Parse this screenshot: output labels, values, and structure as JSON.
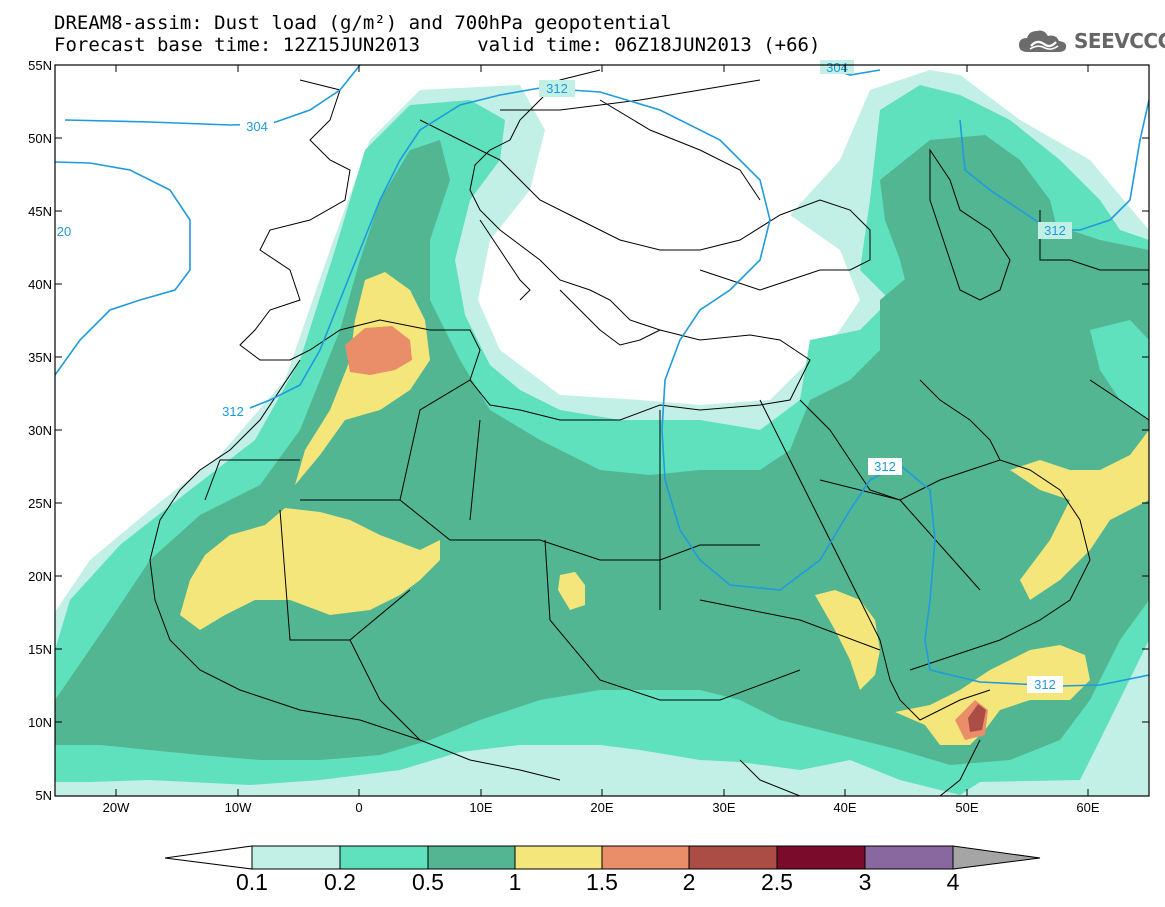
{
  "header": {
    "title_line1": "DREAM8-assim: Dust load (g/m²) and 700hPa geopotential",
    "title_line2": "Forecast base time: 12Z15JUN2013     valid time: 06Z18JUN2013 (+66)",
    "logo_text": "SEEVCCC",
    "logo_icon": "cloud-icon"
  },
  "map": {
    "lat_labels": [
      "55N",
      "50N",
      "45N",
      "40N",
      "35N",
      "30N",
      "25N",
      "20N",
      "15N",
      "10N",
      "5N"
    ],
    "lon_labels": [
      "20W",
      "10W",
      "0",
      "10E",
      "20E",
      "30E",
      "40E",
      "50E",
      "60E"
    ],
    "contours": [
      {
        "label": "312"
      },
      {
        "label": "304"
      },
      {
        "label": "312"
      },
      {
        "label": "312"
      },
      {
        "label": "312"
      },
      {
        "label": "312"
      },
      {
        "label": "20"
      },
      {
        "label": "304"
      }
    ],
    "contour_color": "#1e9bde",
    "land_outline_color": "#000000"
  },
  "colorbar": {
    "labels": [
      "0.1",
      "0.2",
      "0.5",
      "1",
      "1.5",
      "2",
      "2.5",
      "3",
      "4"
    ],
    "colors": [
      "#c2efe6",
      "#5ee1bc",
      "#52b692",
      "#f4e67a",
      "#ea8e69",
      "#ac4d45",
      "#7b0b2b",
      "#89679f",
      "#a5a5a5"
    ]
  }
}
